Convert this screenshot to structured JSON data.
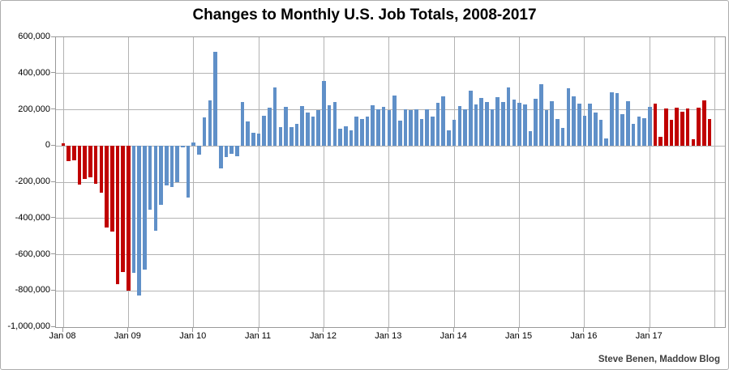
{
  "chart_data": {
    "type": "bar",
    "title": "Changes to Monthly U.S. Job Totals, 2008-2017",
    "values_unit": "thousands of jobs",
    "ylim_thousands": [
      -1000,
      600
    ],
    "grid": true,
    "legend": false,
    "ytick_labels": [
      "600,000",
      "400,000",
      "200,000",
      "0",
      "-200,000",
      "-400,000",
      "-600,000",
      "-800,000",
      "-1,000,000"
    ],
    "xtick_labels": [
      "Jan 08",
      "Jan 09",
      "Jan 10",
      "Jan 11",
      "Jan 12",
      "Jan 13",
      "Jan 14",
      "Jan 15",
      "Jan 16",
      "Jan 17"
    ],
    "years": [
      {
        "year": 2008,
        "values": [
          15,
          -86,
          -80,
          -214,
          -182,
          -172,
          -210,
          -259,
          -452,
          -474,
          -765,
          -697
        ]
      },
      {
        "year": 2009,
        "values": [
          -798,
          -701,
          -826,
          -684,
          -354,
          -467,
          -327,
          -216,
          -227,
          -198,
          -6,
          -283
        ]
      },
      {
        "year": 2010,
        "values": [
          18,
          -50,
          156,
          251,
          521,
          -122,
          -61,
          -42,
          -57,
          241,
          137,
          71
        ]
      },
      {
        "year": 2011,
        "values": [
          70,
          168,
          212,
          322,
          102,
          217,
          106,
          122,
          221,
          183,
          164,
          196
        ]
      },
      {
        "year": 2012,
        "values": [
          360,
          226,
          243,
          96,
          110,
          88,
          160,
          150,
          161,
          225,
          203,
          214
        ]
      },
      {
        "year": 2013,
        "values": [
          197,
          280,
          141,
          203,
          199,
          201,
          149,
          202,
          164,
          237,
          274,
          84
        ]
      },
      {
        "year": 2014,
        "values": [
          144,
          222,
          203,
          304,
          229,
          267,
          243,
          203,
          271,
          243,
          321,
          256
        ]
      },
      {
        "year": 2015,
        "values": [
          240,
          230,
          80,
          260,
          340,
          200,
          245,
          148,
          100,
          320,
          273,
          232
        ]
      },
      {
        "year": 2016,
        "values": [
          168,
          233,
          186,
          144,
          43,
          297,
          291,
          176,
          249,
          124,
          164,
          155
        ]
      },
      {
        "year": 2017,
        "values": [
          216,
          232,
          50,
          207,
          145,
          210,
          189,
          208,
          38,
          211,
          252,
          148
        ]
      }
    ],
    "bar_color_segments": [
      {
        "from_index": 0,
        "to_index": 12,
        "color_key": "red"
      },
      {
        "from_index": 13,
        "to_index": 108,
        "color_key": "blue"
      },
      {
        "from_index": 109,
        "to_index": 119,
        "color_key": "red"
      }
    ],
    "colors": {
      "red": "#C00000",
      "blue": "#6090C8",
      "gridline": "#B3B3B3",
      "plot_border": "#999999",
      "text": "#000000",
      "background": "#FFFFFF"
    }
  },
  "attribution": "Steve Benen, Maddow Blog"
}
